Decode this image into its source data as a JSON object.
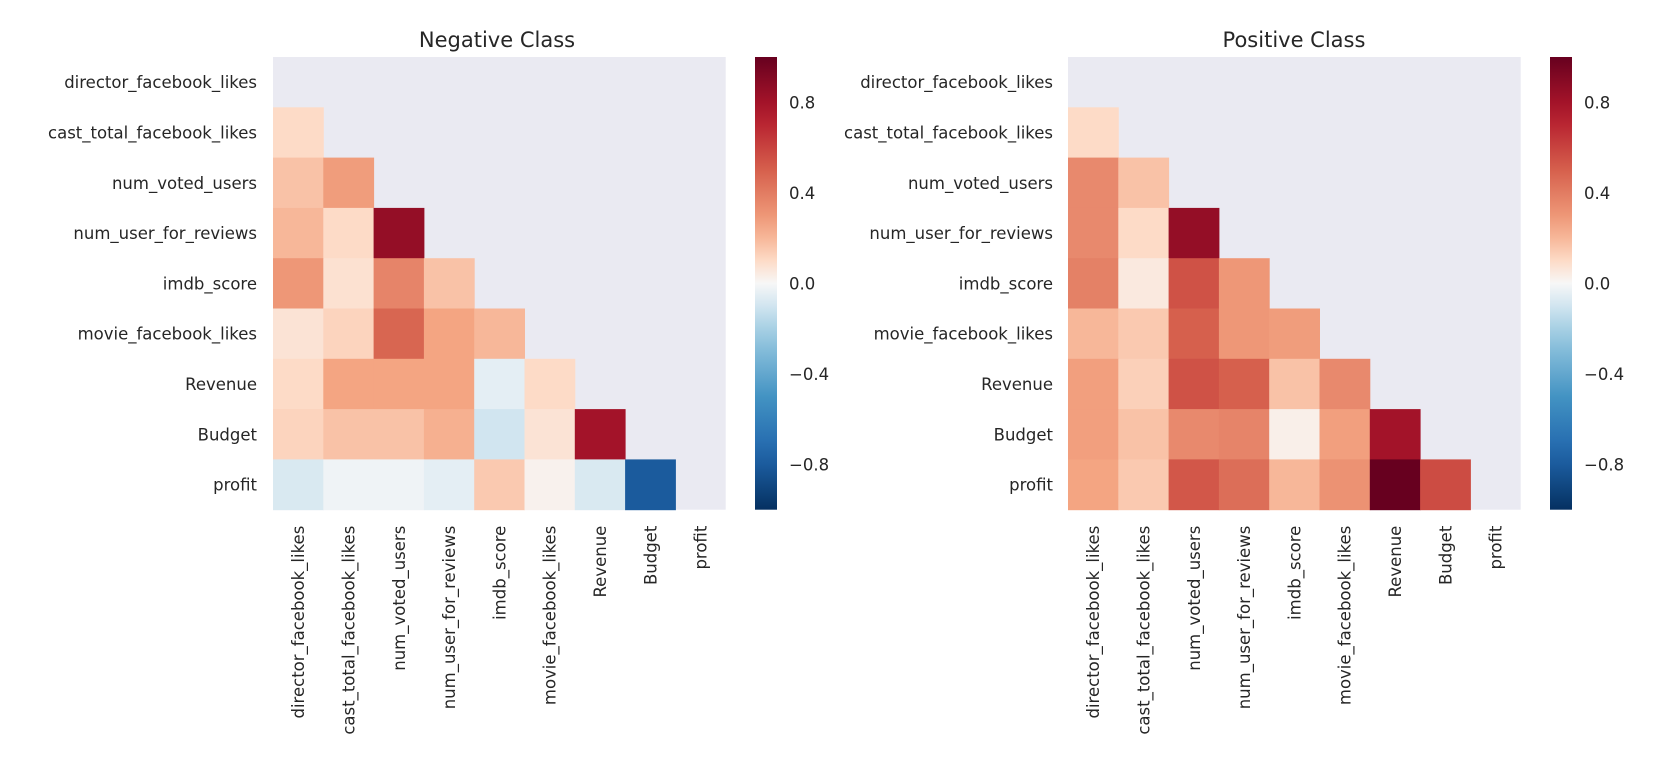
{
  "chart_data": [
    {
      "type": "heatmap",
      "title": "Negative Class",
      "variables": [
        "director_facebook_likes",
        "cast_total_facebook_likes",
        "num_voted_users",
        "num_user_for_reviews",
        "imdb_score",
        "movie_facebook_likes",
        "Revenue",
        "Budget",
        "profit"
      ],
      "masked": "upper-triangle-and-diagonal",
      "rows": [
        [],
        [
          0.1
        ],
        [
          0.17,
          0.28
        ],
        [
          0.2,
          0.1,
          0.85
        ],
        [
          0.3,
          0.08,
          0.37,
          0.17
        ],
        [
          0.07,
          0.12,
          0.48,
          0.25,
          0.2
        ],
        [
          0.1,
          0.25,
          0.25,
          0.25,
          -0.05,
          0.1
        ],
        [
          0.12,
          0.17,
          0.17,
          0.22,
          -0.1,
          0.07,
          0.8
        ],
        [
          -0.08,
          -0.02,
          -0.02,
          -0.05,
          0.15,
          0.02,
          -0.08,
          -0.8
        ]
      ],
      "colorbar": {
        "min": -1,
        "max": 1,
        "ticks": [
          "0.8",
          "0.4",
          "0.0",
          "−0.4",
          "−0.8"
        ],
        "colormap": "RdBu_r"
      }
    },
    {
      "type": "heatmap",
      "title": "Positive Class",
      "variables": [
        "director_facebook_likes",
        "cast_total_facebook_likes",
        "num_voted_users",
        "num_user_for_reviews",
        "imdb_score",
        "movie_facebook_likes",
        "Revenue",
        "Budget",
        "profit"
      ],
      "masked": "upper-triangle-and-diagonal",
      "rows": [
        [],
        [
          0.1
        ],
        [
          0.35,
          0.17
        ],
        [
          0.35,
          0.1,
          0.85
        ],
        [
          0.38,
          0.05,
          0.55,
          0.3
        ],
        [
          0.2,
          0.15,
          0.5,
          0.3,
          0.28
        ],
        [
          0.27,
          0.13,
          0.55,
          0.5,
          0.17,
          0.35
        ],
        [
          0.27,
          0.17,
          0.35,
          0.37,
          0.03,
          0.27,
          0.8
        ],
        [
          0.25,
          0.15,
          0.53,
          0.45,
          0.2,
          0.32,
          1.0,
          0.57
        ]
      ],
      "colorbar": {
        "min": -1,
        "max": 1,
        "ticks": [
          "0.8",
          "0.4",
          "0.0",
          "−0.4",
          "−0.8"
        ],
        "colormap": "RdBu_r"
      }
    }
  ]
}
